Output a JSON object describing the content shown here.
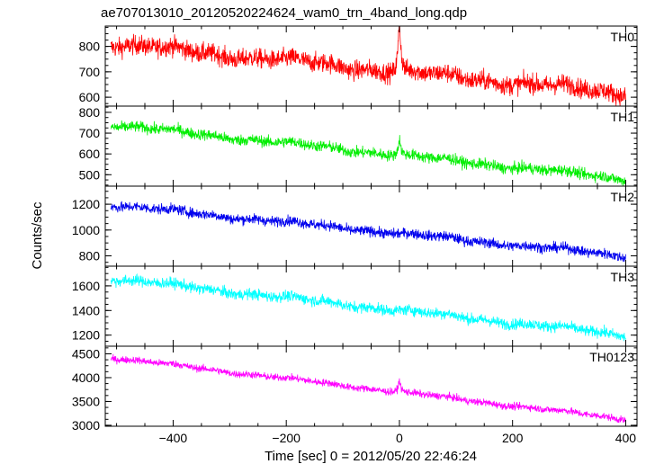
{
  "chart_data": {
    "type": "line",
    "title": "ae707013010_20120520224624_wam0_trn_4band_long.qdp",
    "xlabel": "Time [sec] 0 = 2012/05/20 22:46:24",
    "ylabel": "Counts/sec",
    "xlim": [
      -520,
      420
    ],
    "x_ticks": [
      -400,
      -200,
      0,
      200,
      400
    ],
    "x_tick_labels": [
      "−400",
      "−200",
      "0",
      "200",
      "400"
    ],
    "x_range": [
      -510,
      400
    ],
    "grid": false,
    "panels": [
      {
        "name": "TH0",
        "color": "#ff0000",
        "ylim": [
          565,
          880
        ],
        "ticks": [
          600,
          700,
          800
        ],
        "tick_labels": [
          "600",
          "700",
          "800"
        ],
        "start": 810,
        "end": 615,
        "noise": 38,
        "peak": {
          "x": 0,
          "height": 230
        }
      },
      {
        "name": "TH1",
        "color": "#00ee00",
        "ylim": [
          445,
          830
        ],
        "ticks": [
          500,
          600,
          700,
          800
        ],
        "tick_labels": [
          "500",
          "600",
          "700",
          "800"
        ],
        "start": 740,
        "end": 480,
        "noise": 27,
        "peak": {
          "x": 0,
          "height": 85
        }
      },
      {
        "name": "TH2",
        "color": "#0000ee",
        "ylim": [
          720,
          1340
        ],
        "ticks": [
          800,
          1000,
          1200
        ],
        "tick_labels": [
          "800",
          "1000",
          "1200"
        ],
        "start": 1195,
        "end": 800,
        "noise": 40,
        "peak": {
          "x": 0,
          "height": 0
        }
      },
      {
        "name": "TH3",
        "color": "#00ffff",
        "ylim": [
          1110,
          1760
        ],
        "ticks": [
          1200,
          1400,
          1600
        ],
        "tick_labels": [
          "1200",
          "1400",
          "1600"
        ],
        "start": 1660,
        "end": 1200,
        "noise": 45,
        "peak": {
          "x": 0,
          "height": 0
        }
      },
      {
        "name": "TH0123",
        "color": "#ff00ff",
        "ylim": [
          2980,
          4660
        ],
        "ticks": [
          3000,
          3500,
          4000,
          4500
        ],
        "tick_labels": [
          "3000",
          "3500",
          "4000",
          "4500"
        ],
        "start": 4420,
        "end": 3130,
        "noise": 75,
        "peak": {
          "x": 0,
          "height": 260
        }
      }
    ]
  }
}
